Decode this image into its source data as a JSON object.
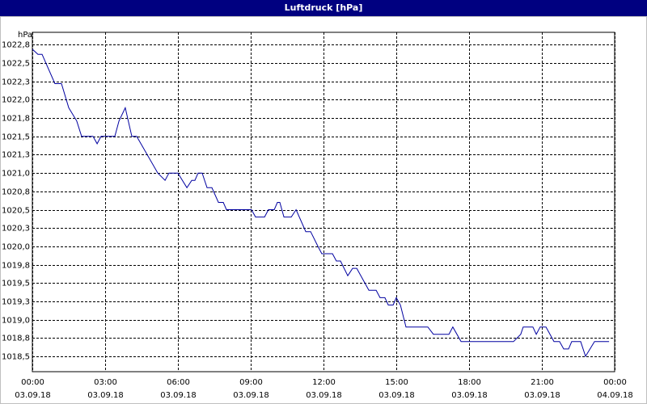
{
  "chart_data": {
    "type": "line",
    "title": "Luftdruck [hPa]",
    "y_label": "hPa",
    "color": "#0000a0",
    "grid": true,
    "xlim": [
      0,
      24
    ],
    "ylim": [
      1018.29,
      1022.92
    ],
    "xticks": [
      {
        "value": 0,
        "label": "00:00",
        "date": "03.09.18"
      },
      {
        "value": 3,
        "label": "03:00",
        "date": "03.09.18"
      },
      {
        "value": 6,
        "label": "06:00",
        "date": "03.09.18"
      },
      {
        "value": 9,
        "label": "09:00",
        "date": "03.09.18"
      },
      {
        "value": 12,
        "label": "12:00",
        "date": "03.09.18"
      },
      {
        "value": 15,
        "label": "15:00",
        "date": "03.09.18"
      },
      {
        "value": 18,
        "label": "18:00",
        "date": "03.09.18"
      },
      {
        "value": 21,
        "label": "21:00",
        "date": "03.09.18"
      },
      {
        "value": 24,
        "label": "00:00",
        "date": "04.09.18"
      }
    ],
    "yticks": [
      {
        "value": 1022.75,
        "label": "1022,8"
      },
      {
        "value": 1022.5,
        "label": "1022,5"
      },
      {
        "value": 1022.25,
        "label": "1022,3"
      },
      {
        "value": 1022,
        "label": "1022,0"
      },
      {
        "value": 1021.75,
        "label": "1021,8"
      },
      {
        "value": 1021.5,
        "label": "1021,5"
      },
      {
        "value": 1021.25,
        "label": "1021,3"
      },
      {
        "value": 1021,
        "label": "1021,0"
      },
      {
        "value": 1020.75,
        "label": "1020,8"
      },
      {
        "value": 1020.5,
        "label": "1020,5"
      },
      {
        "value": 1020.25,
        "label": "1020,3"
      },
      {
        "value": 1020,
        "label": "1020,0"
      },
      {
        "value": 1019.75,
        "label": "1019,8"
      },
      {
        "value": 1019.5,
        "label": "1019,5"
      },
      {
        "value": 1019.25,
        "label": "1019,3"
      },
      {
        "value": 1019,
        "label": "1019,0"
      },
      {
        "value": 1018.75,
        "label": "1018,8"
      },
      {
        "value": 1018.5,
        "label": "1018,5"
      }
    ],
    "x": [
      0,
      0.23,
      0.4,
      0.93,
      1.2,
      1.5,
      1.83,
      2.03,
      2.5,
      2.67,
      2.83,
      3.4,
      3.57,
      3.83,
      4.1,
      4.3,
      5.17,
      5.47,
      5.63,
      6,
      6.37,
      6.57,
      6.7,
      6.83,
      7,
      7.2,
      7.4,
      7.67,
      7.87,
      8,
      9.03,
      9.2,
      9.57,
      9.73,
      9.97,
      10.1,
      10.2,
      10.37,
      10.67,
      10.87,
      11.27,
      11.47,
      11.77,
      11.93,
      12.37,
      12.53,
      12.7,
      13,
      13.2,
      13.37,
      13.87,
      14.17,
      14.33,
      14.53,
      14.67,
      14.87,
      15,
      15.17,
      15.4,
      16.3,
      16.53,
      17.17,
      17.33,
      17.67,
      19.83,
      20.13,
      20.23,
      20.63,
      20.77,
      20.93,
      21.17,
      21.5,
      21.73,
      21.9,
      22.1,
      22.23,
      22.6,
      22.8,
      23.17,
      23.77
    ],
    "values": [
      1022.69,
      1022.62,
      1022.62,
      1022.22,
      1022.22,
      1021.89,
      1021.71,
      1021.5,
      1021.5,
      1021.4,
      1021.5,
      1021.5,
      1021.71,
      1021.89,
      1021.5,
      1021.5,
      1021.0,
      1020.9,
      1021.0,
      1021.0,
      1020.8,
      1020.9,
      1020.9,
      1021.0,
      1021.0,
      1020.8,
      1020.8,
      1020.6,
      1020.6,
      1020.5,
      1020.5,
      1020.4,
      1020.4,
      1020.5,
      1020.5,
      1020.6,
      1020.6,
      1020.4,
      1020.4,
      1020.5,
      1020.2,
      1020.2,
      1020.0,
      1019.9,
      1019.9,
      1019.8,
      1019.8,
      1019.6,
      1019.7,
      1019.7,
      1019.4,
      1019.4,
      1019.3,
      1019.3,
      1019.2,
      1019.2,
      1019.3,
      1019.2,
      1018.9,
      1018.9,
      1018.8,
      1018.8,
      1018.9,
      1018.7,
      1018.7,
      1018.8,
      1018.9,
      1018.9,
      1018.8,
      1018.9,
      1018.9,
      1018.7,
      1018.7,
      1018.6,
      1018.6,
      1018.7,
      1018.7,
      1018.5,
      1018.7,
      1018.7
    ]
  }
}
